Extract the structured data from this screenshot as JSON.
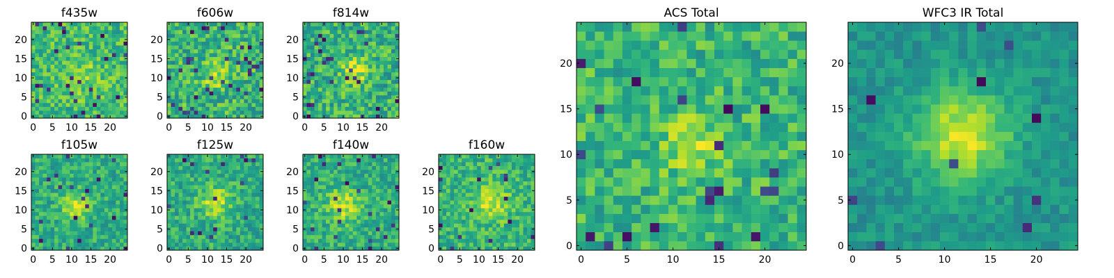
{
  "figure": {
    "colormap": "viridis",
    "grid_size": 25,
    "colors": {
      "viridis_stops": [
        "#440154",
        "#482878",
        "#3e4989",
        "#31688e",
        "#26828e",
        "#1f9e89",
        "#35b779",
        "#6ece58",
        "#b5de2b",
        "#fde725"
      ],
      "axes": "#000000",
      "background": "#ffffff"
    }
  },
  "chart_data": [
    {
      "id": "f435w",
      "type": "heatmap",
      "title": "f435w",
      "x_ticks": [
        0,
        5,
        10,
        15,
        20
      ],
      "y_ticks": [
        0,
        5,
        10,
        15,
        20
      ],
      "extent": [
        -0.5,
        24.5
      ],
      "size": 25,
      "peak": [
        13,
        10
      ],
      "sigma": 3.0,
      "amp": 0.15,
      "base": 0.68,
      "noise": 0.18,
      "lowfrac": 0.04,
      "seed": 11
    },
    {
      "id": "f606w",
      "type": "heatmap",
      "title": "f606w",
      "x_ticks": [
        0,
        5,
        10,
        15,
        20
      ],
      "y_ticks": [
        0,
        5,
        10,
        15,
        20
      ],
      "extent": [
        -0.5,
        24.5
      ],
      "size": 25,
      "peak": [
        12,
        11
      ],
      "sigma": 2.5,
      "amp": 0.25,
      "base": 0.65,
      "noise": 0.2,
      "lowfrac": 0.05,
      "seed": 23
    },
    {
      "id": "f814w",
      "type": "heatmap",
      "title": "f814w",
      "x_ticks": [
        0,
        5,
        10,
        15,
        20
      ],
      "y_ticks": [
        0,
        5,
        10,
        15,
        20
      ],
      "extent": [
        -0.5,
        24.5
      ],
      "size": 25,
      "peak": [
        13,
        12
      ],
      "sigma": 2.5,
      "amp": 0.28,
      "base": 0.64,
      "noise": 0.2,
      "lowfrac": 0.05,
      "seed": 37
    },
    {
      "id": "f105w",
      "type": "heatmap",
      "title": "f105w",
      "x_ticks": [
        0,
        5,
        10,
        15,
        20
      ],
      "y_ticks": [
        0,
        5,
        10,
        15,
        20
      ],
      "extent": [
        -0.5,
        24.5
      ],
      "size": 25,
      "peak": [
        11,
        11
      ],
      "sigma": 2.5,
      "amp": 0.3,
      "base": 0.62,
      "noise": 0.15,
      "lowfrac": 0.03,
      "seed": 41
    },
    {
      "id": "f125w",
      "type": "heatmap",
      "title": "f125w",
      "x_ticks": [
        0,
        5,
        10,
        15,
        20
      ],
      "y_ticks": [
        0,
        5,
        10,
        15,
        20
      ],
      "extent": [
        -0.5,
        24.5
      ],
      "size": 25,
      "peak": [
        12,
        12
      ],
      "sigma": 2.8,
      "amp": 0.3,
      "base": 0.62,
      "noise": 0.16,
      "lowfrac": 0.03,
      "seed": 53
    },
    {
      "id": "f140w",
      "type": "heatmap",
      "title": "f140w",
      "x_ticks": [
        0,
        5,
        10,
        15,
        20
      ],
      "y_ticks": [
        0,
        5,
        10,
        15,
        20
      ],
      "extent": [
        -0.5,
        24.5
      ],
      "size": 25,
      "peak": [
        10,
        11
      ],
      "sigma": 3.0,
      "amp": 0.28,
      "base": 0.63,
      "noise": 0.15,
      "lowfrac": 0.03,
      "seed": 67
    },
    {
      "id": "f160w",
      "type": "heatmap",
      "title": "f160w",
      "x_ticks": [
        0,
        5,
        10,
        15,
        20
      ],
      "y_ticks": [
        0,
        5,
        10,
        15,
        20
      ],
      "extent": [
        -0.5,
        24.5
      ],
      "size": 25,
      "peak": [
        13,
        12
      ],
      "sigma": 3.2,
      "amp": 0.28,
      "base": 0.65,
      "noise": 0.16,
      "lowfrac": 0.03,
      "seed": 79
    },
    {
      "id": "acs-total",
      "type": "heatmap",
      "title": "ACS Total",
      "x_ticks": [
        0,
        5,
        10,
        15,
        20
      ],
      "y_ticks": [
        0,
        5,
        10,
        15,
        20
      ],
      "extent": [
        -0.5,
        24.5
      ],
      "size": 25,
      "peak": [
        12,
        11
      ],
      "sigma": 2.0,
      "amp": 0.3,
      "base": 0.66,
      "noise": 0.17,
      "lowfrac": 0.035,
      "seed": 91
    },
    {
      "id": "wfc3-ir-total",
      "type": "heatmap",
      "title": "WFC3 IR Total",
      "x_ticks": [
        0,
        5,
        10,
        15,
        20
      ],
      "y_ticks": [
        0,
        5,
        10,
        15,
        20
      ],
      "extent": [
        -0.5,
        24.5
      ],
      "size": 25,
      "peak": [
        12,
        12
      ],
      "sigma": 3.6,
      "amp": 0.42,
      "base": 0.52,
      "noise": 0.09,
      "lowfrac": 0.025,
      "seed": 103
    }
  ]
}
